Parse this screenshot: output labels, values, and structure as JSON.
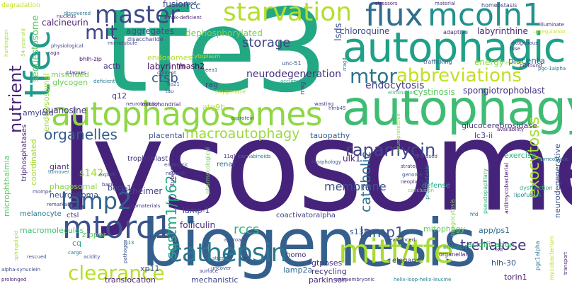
{
  "words": [
    {
      "text": "lysosome",
      "color": "#46237a"
    },
    {
      "text": "tfe3",
      "color": "#23a884"
    },
    {
      "text": "biogenesis",
      "color": "#35608d"
    },
    {
      "text": "autophagy",
      "color": "#3fbc73"
    },
    {
      "text": "autophagic",
      "color": "#1fa187"
    },
    {
      "text": "autophagosomes",
      "color": "#8fd744"
    },
    {
      "text": "flux",
      "color": "#2e6e8e"
    },
    {
      "text": "mcoln1",
      "color": "#21918c"
    },
    {
      "text": "tfec",
      "color": "#1e9b8a"
    },
    {
      "text": "mtorc1",
      "color": "#3b528b"
    },
    {
      "text": "mitf/tfe",
      "color": "#a8db34"
    },
    {
      "text": "cathepsin",
      "color": "#2a788e"
    },
    {
      "text": "starvation",
      "color": "#b5de2b"
    },
    {
      "text": "master",
      "color": "#3e4a89"
    },
    {
      "text": "mtor",
      "color": "#2c728e"
    },
    {
      "text": "abbreviations",
      "color": "#c2df23"
    },
    {
      "text": "lamp2",
      "color": "#33638d"
    },
    {
      "text": "clearance",
      "color": "#b8de29"
    },
    {
      "text": "mit",
      "color": "#414487"
    },
    {
      "text": "nutrient",
      "color": "#482475"
    },
    {
      "text": "rapamycin",
      "color": "#404688"
    },
    {
      "text": "exocytosis",
      "color": "#a5db36"
    },
    {
      "text": "trehalose",
      "color": "#453781"
    },
    {
      "text": "organelles",
      "color": "#365c8d"
    },
    {
      "text": "macroautophagy",
      "color": "#9bd93c"
    },
    {
      "text": "sqstm1/p62",
      "color": "#22a884"
    },
    {
      "text": "lamp1",
      "color": "#3a548c"
    },
    {
      "text": "rccs",
      "color": "#2db27d"
    },
    {
      "text": "catabolic",
      "color": "#2e6f8e"
    },
    {
      "text": "storage",
      "color": "#404588"
    },
    {
      "text": "ctsb",
      "color": "#38588c"
    },
    {
      "text": "endocytosis",
      "color": "#433e85"
    },
    {
      "text": "membrane",
      "color": "#3b518b"
    },
    {
      "text": "neurodegeneration",
      "color": "#46307e"
    },
    {
      "text": "sequestosome",
      "color": "#5ec962"
    },
    {
      "text": "dephosphorylated",
      "color": "#7ad151"
    },
    {
      "text": "aggregates",
      "color": "#3c4f8a"
    },
    {
      "text": "labyrinth",
      "color": "#471063"
    },
    {
      "text": "rcc",
      "color": "#365d8d"
    },
    {
      "text": "fusion",
      "color": "#424186"
    },
    {
      "text": "calcineurin",
      "color": "#481b6d"
    },
    {
      "text": "chloroquine",
      "color": "#3d4d8a"
    },
    {
      "text": "labyrinthine",
      "color": "#482576"
    },
    {
      "text": "cystinosis",
      "color": "#5ec962"
    },
    {
      "text": "spongiotrophoblast",
      "color": "#46327e"
    },
    {
      "text": "placenta",
      "color": "#355f8d"
    },
    {
      "text": "energy",
      "color": "#86d549"
    },
    {
      "text": "guanosine",
      "color": "#453882"
    },
    {
      "text": "glycogen",
      "color": "#6ccd5a"
    },
    {
      "text": "amyloid",
      "color": "#404588"
    },
    {
      "text": "ulk1",
      "color": "#481c6e"
    },
    {
      "text": "becn1",
      "color": "#3e4989"
    },
    {
      "text": "alzheimer",
      "color": "#414487"
    },
    {
      "text": "lamp-1",
      "color": "#3e4c8a"
    },
    {
      "text": "folliculin",
      "color": "#46327e"
    },
    {
      "text": "mitophagy",
      "color": "#60ca60"
    },
    {
      "text": "s142",
      "color": "#a0da39"
    },
    {
      "text": "giant",
      "color": "#46327e"
    },
    {
      "text": "microphthalmia",
      "color": "#5ec962"
    },
    {
      "text": "macromolecules",
      "color": "#42be71"
    },
    {
      "text": "zipper",
      "color": "#5ec962"
    },
    {
      "text": "cq",
      "color": "#20a486"
    },
    {
      "text": "xp11",
      "color": "#3b528b"
    },
    {
      "text": "translocation",
      "color": "#481f70"
    },
    {
      "text": "mechanistic",
      "color": "#404588"
    },
    {
      "text": "lamp2a",
      "color": "#2f6c8e"
    },
    {
      "text": "gtpases",
      "color": "#472e7c"
    },
    {
      "text": "recycling",
      "color": "#46307e"
    },
    {
      "text": "parkinson",
      "color": "#482575"
    },
    {
      "text": "hlh-30",
      "color": "#3b528b"
    },
    {
      "text": "torin1",
      "color": "#481b6d"
    },
    {
      "text": "lc3-ii",
      "color": "#414487"
    },
    {
      "text": "glucocerebrosidase",
      "color": "#453781"
    },
    {
      "text": "exercise",
      "color": "#29af7f"
    },
    {
      "text": "app/ps1",
      "color": "#31688e"
    },
    {
      "text": "acidification",
      "color": "#3fbc73"
    },
    {
      "text": "lsds",
      "color": "#3d4e8a"
    },
    {
      "text": "endolysosomal",
      "color": "#a0da39"
    },
    {
      "text": "mash2",
      "color": "#440154"
    },
    {
      "text": "rag",
      "color": "#414487"
    },
    {
      "text": "atg9b",
      "color": "#b8de29"
    },
    {
      "text": "tauopathy",
      "color": "#365c8d"
    },
    {
      "text": "placental",
      "color": "#3b528b"
    },
    {
      "text": "q12",
      "color": "#46337f"
    },
    {
      "text": "actb",
      "color": "#453781"
    },
    {
      "text": "s138",
      "color": "#38588c"
    },
    {
      "text": "neurodegenerative",
      "color": "#3b528b"
    },
    {
      "text": "coordinated",
      "color": "#a5db36"
    },
    {
      "text": "triphosphatases",
      "color": "#482475"
    },
    {
      "text": "misfolded",
      "color": "#75d054"
    },
    {
      "text": "endosomes",
      "color": "#b5de2b"
    },
    {
      "text": "phagosomal",
      "color": "#8fd744"
    },
    {
      "text": "neuroglioma",
      "color": "#3b528b"
    },
    {
      "text": "melanocyte",
      "color": "#2a788e"
    },
    {
      "text": "ctsl",
      "color": "#46307e"
    },
    {
      "text": "lc3a",
      "color": "#3e4a89"
    },
    {
      "text": "coactivatoralpha",
      "color": "#424186"
    },
    {
      "text": "renal",
      "color": "#2c728e"
    },
    {
      "text": "defense",
      "color": "#22a884"
    },
    {
      "text": "elegans",
      "color": "#443a83"
    },
    {
      "text": "homo",
      "color": "#46307e"
    },
    {
      "text": "trophoblast",
      "color": "#453781"
    },
    {
      "text": "upregulation",
      "color": "#c8e020"
    },
    {
      "text": "stressors",
      "color": "#481f70"
    },
    {
      "text": "material",
      "color": "#443983"
    },
    {
      "text": "homeostasis",
      "color": "#414487"
    },
    {
      "text": "illuminate",
      "color": "#482173"
    },
    {
      "text": "degradation",
      "color": "#c2df23"
    },
    {
      "text": "huntington",
      "color": "#a8db34"
    },
    {
      "text": "54-year-old",
      "color": "#9fda3a"
    },
    {
      "text": "disaccharide",
      "color": "#3e4c8a"
    },
    {
      "text": "unc-51",
      "color": "#3b528b"
    },
    {
      "text": "cytoplasm",
      "color": "#b5de2b"
    },
    {
      "text": "adaptive",
      "color": "#46307e"
    },
    {
      "text": "trafficking",
      "color": "#3b528b"
    },
    {
      "text": "bhlh-zip",
      "color": "#471365"
    },
    {
      "text": "mitochondrial",
      "color": "#46307e"
    },
    {
      "text": "phagocytosis",
      "color": "#86d549"
    },
    {
      "text": "dysfunction",
      "color": "#2db27d"
    },
    {
      "text": "lipofuscin",
      "color": "#26818e"
    },
    {
      "text": "proteostasis",
      "color": "#21918c"
    },
    {
      "text": "antimycobacterial",
      "color": "#481b6d"
    },
    {
      "text": "tuberculosis",
      "color": "#472a7a"
    },
    {
      "text": "pharmacological",
      "color": "#6ccd5a"
    },
    {
      "text": "mycobacterium",
      "color": "#b5de2b"
    },
    {
      "text": "pseudopapillary",
      "color": "#2db27d"
    },
    {
      "text": "nanomaterials",
      "color": "#453781"
    },
    {
      "text": "eif4ebp1",
      "color": "#21918c"
    },
    {
      "text": "organellar",
      "color": "#481b6d"
    },
    {
      "text": "oxygenase",
      "color": "#c8e020"
    },
    {
      "text": "microtubule",
      "color": "#433e85"
    },
    {
      "text": "evidenced",
      "color": "#453781"
    },
    {
      "text": "approach",
      "color": "#3b528b"
    },
    {
      "text": "neuroprotective",
      "color": "#8fd744"
    },
    {
      "text": "asprotein",
      "color": "#3b528b"
    },
    {
      "text": "extraembryonic",
      "color": "#46307e"
    },
    {
      "text": "helix-loop-helix-leucine",
      "color": "#26818e"
    },
    {
      "text": "transport",
      "color": "#482878"
    },
    {
      "text": "alpha-synuclein",
      "color": "#3e4989"
    },
    {
      "text": "acidity",
      "color": "#3b528b"
    },
    {
      "text": "pgc1alpha",
      "color": "#2a788e"
    },
    {
      "text": "lsd",
      "color": "#46307e"
    },
    {
      "text": "hfd",
      "color": "#2a788e"
    },
    {
      "text": "atg",
      "color": "#46307e"
    },
    {
      "text": "food",
      "color": "#3b528b"
    },
    {
      "text": "fuse",
      "color": "#46307e"
    },
    {
      "text": "exogenous",
      "color": "#433e85"
    },
    {
      "text": "restore",
      "color": "#a0da39"
    },
    {
      "text": "profound",
      "color": "#482475"
    },
    {
      "text": "pgc-1alpha",
      "color": "#2a788e"
    },
    {
      "text": "content",
      "color": "#3b528b"
    },
    {
      "text": "accumulation",
      "color": "#20a486"
    },
    {
      "text": "ampk-deficient",
      "color": "#481f70"
    },
    {
      "text": "discovered",
      "color": "#2c728e"
    },
    {
      "text": "nucleus",
      "color": "#46307e"
    },
    {
      "text": "physiological",
      "color": "#414487"
    },
    {
      "text": "raga",
      "color": "#481b6d"
    },
    {
      "text": "plaques",
      "color": "#46307e"
    },
    {
      "text": "deficient",
      "color": "#2a788e"
    },
    {
      "text": "6p21",
      "color": "#3b528b"
    },
    {
      "text": "tau",
      "color": "#3e4989"
    },
    {
      "text": "eea1",
      "color": "#3b528b"
    },
    {
      "text": "rrag",
      "color": "#3e4989"
    },
    {
      "text": "rragd",
      "color": "#2c728e"
    },
    {
      "text": "neurotoxicity",
      "color": "#46307e"
    },
    {
      "text": "wasting",
      "color": "#46307e"
    },
    {
      "text": "hmb45",
      "color": "#3b528b"
    },
    {
      "text": "elimination",
      "color": "#3fbc73"
    },
    {
      "text": "11q12",
      "color": "#472a7a"
    },
    {
      "text": "cannabinoids",
      "color": "#2c728e"
    },
    {
      "text": "unbiased",
      "color": "#3b528b"
    },
    {
      "text": "availability",
      "color": "#481b6d"
    },
    {
      "text": "homeostatic",
      "color": "#2c728e"
    },
    {
      "text": "morphology",
      "color": "#3b528b"
    },
    {
      "text": "strategy",
      "color": "#46307e"
    },
    {
      "text": "genome",
      "color": "#3b528b"
    },
    {
      "text": "neoplasms",
      "color": "#46307e"
    },
    {
      "text": "conclusion",
      "color": "#7ad151"
    },
    {
      "text": "endocytic",
      "color": "#3b528b"
    },
    {
      "text": "network",
      "color": "#414487"
    },
    {
      "text": "turnover",
      "color": "#2a788e"
    },
    {
      "text": "export",
      "color": "#3b528b"
    },
    {
      "text": "basic",
      "color": "#46307e"
    },
    {
      "text": "mompe",
      "color": "#3e4989"
    },
    {
      "text": "remarkably",
      "color": "#414487"
    },
    {
      "text": "rescued",
      "color": "#3b528b"
    },
    {
      "text": "cargo",
      "color": "#2a788e"
    },
    {
      "text": "prolonged",
      "color": "#482475"
    },
    {
      "text": "stress",
      "color": "#2a788e"
    },
    {
      "text": "uncover",
      "color": "#3b528b"
    },
    {
      "text": "surface",
      "color": "#414487"
    },
    {
      "text": "pathogen",
      "color": "#3b528b"
    },
    {
      "text": "q13",
      "color": "#2a788e"
    },
    {
      "text": "sphingolipid",
      "color": "#a8db34"
    }
  ]
}
